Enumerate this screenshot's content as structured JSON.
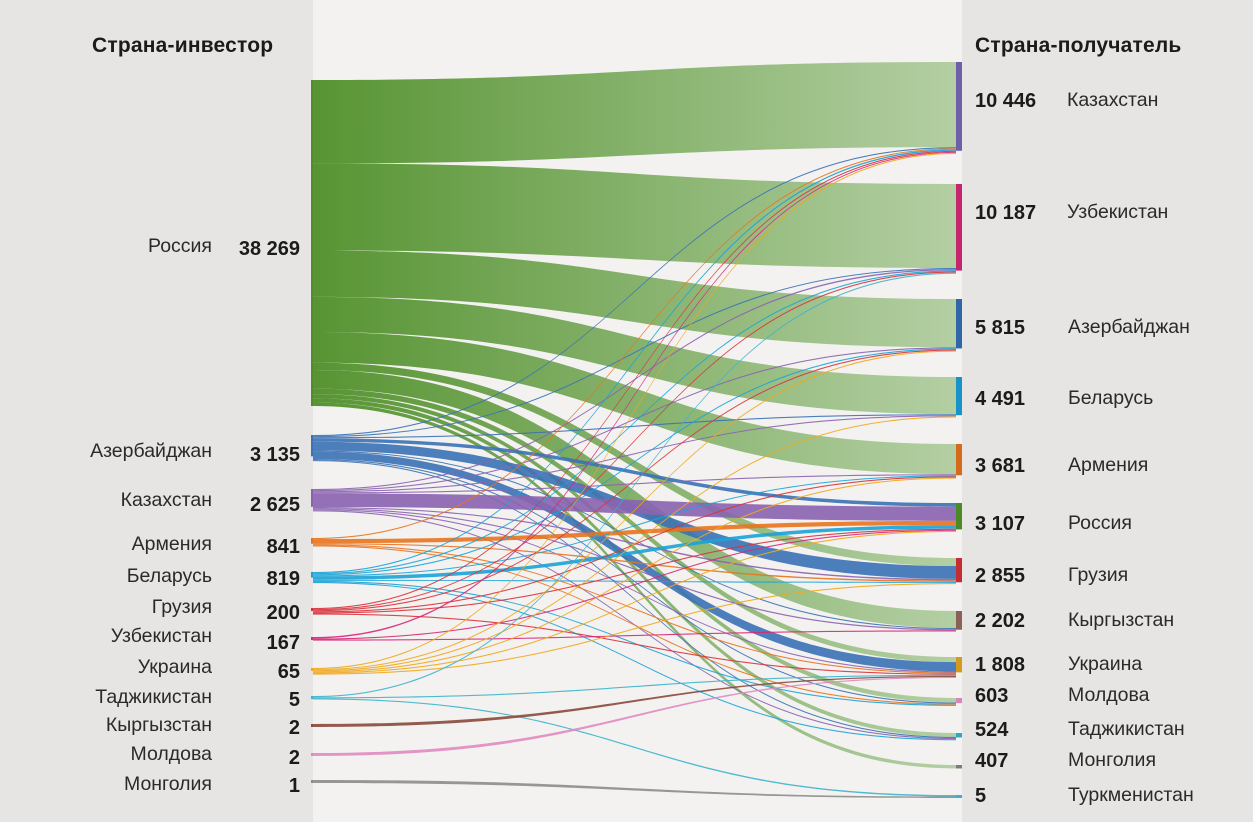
{
  "header": {
    "left_title": "Страна-инвестор",
    "right_title": "Страна-получатель"
  },
  "chart_data": {
    "type": "sankey",
    "title": "",
    "sources": [
      {
        "id": "russia",
        "label": "Россия",
        "value": 38269,
        "value_label": "38 269",
        "color": "#4f8f29"
      },
      {
        "id": "azerbaijan",
        "label": "Азербайджан",
        "value": 3135,
        "value_label": "3 135",
        "color": "#3a72b5"
      },
      {
        "id": "kazakhstan",
        "label": "Казахстан",
        "value": 2625,
        "value_label": "2 625",
        "color": "#8a63b0"
      },
      {
        "id": "armenia",
        "label": "Армения",
        "value": 841,
        "value_label": "841",
        "color": "#e8741e"
      },
      {
        "id": "belarus",
        "label": "Беларусь",
        "value": 819,
        "value_label": "819",
        "color": "#1aa3d8"
      },
      {
        "id": "georgia",
        "label": "Грузия",
        "value": 200,
        "value_label": "200",
        "color": "#d9323b"
      },
      {
        "id": "uzbekistan",
        "label": "Узбекистан",
        "value": 167,
        "value_label": "167",
        "color": "#d6287a"
      },
      {
        "id": "ukraine",
        "label": "Украина",
        "value": 65,
        "value_label": "65",
        "color": "#f0a81c"
      },
      {
        "id": "tajikistan",
        "label": "Таджикистан",
        "value": 5,
        "value_label": "5",
        "color": "#3bb4cc"
      },
      {
        "id": "kyrgyzstan",
        "label": "Кыргызстан",
        "value": 2,
        "value_label": "2",
        "color": "#8a4a3c"
      },
      {
        "id": "moldova",
        "label": "Молдова",
        "value": 2,
        "value_label": "2",
        "color": "#e08ac0"
      },
      {
        "id": "mongolia",
        "label": "Монголия",
        "value": 1,
        "value_label": "1",
        "color": "#8c8c8c"
      }
    ],
    "targets": [
      {
        "id": "kazakhstan",
        "label": "Казахстан",
        "value": 10446,
        "value_label": "10 446",
        "color": "#6d5fa8"
      },
      {
        "id": "uzbekistan",
        "label": "Узбекистан",
        "value": 10187,
        "value_label": "10 187",
        "color": "#c7246f"
      },
      {
        "id": "azerbaijan",
        "label": "Азербайджан",
        "value": 5815,
        "value_label": "5 815",
        "color": "#2f66a8"
      },
      {
        "id": "belarus",
        "label": "Беларусь",
        "value": 4491,
        "value_label": "4 491",
        "color": "#1893c8"
      },
      {
        "id": "armenia",
        "label": "Армения",
        "value": 3681,
        "value_label": "3 681",
        "color": "#d56b1a"
      },
      {
        "id": "russia",
        "label": "Россия",
        "value": 3107,
        "value_label": "3 107",
        "color": "#4c8a27"
      },
      {
        "id": "georgia",
        "label": "Грузия",
        "value": 2855,
        "value_label": "2 855",
        "color": "#c32d34"
      },
      {
        "id": "kyrgyzstan",
        "label": "Кыргызстан",
        "value": 2202,
        "value_label": "2 202",
        "color": "#8a6157"
      },
      {
        "id": "ukraine",
        "label": "Украина",
        "value": 1808,
        "value_label": "1 808",
        "color": "#d49a1c"
      },
      {
        "id": "moldova",
        "label": "Молдова",
        "value": 603,
        "value_label": "603",
        "color": "#d488b8"
      },
      {
        "id": "tajikistan",
        "label": "Таджикистан",
        "value": 524,
        "value_label": "524",
        "color": "#2aaac0"
      },
      {
        "id": "mongolia",
        "label": "Монголия",
        "value": 407,
        "value_label": "407",
        "color": "#7c7c7c"
      },
      {
        "id": "turkmenistan",
        "label": "Туркменистан",
        "value": 5,
        "value_label": "5",
        "color": "#3ab0d0"
      }
    ],
    "flows": [
      {
        "source": "russia",
        "target": "kazakhstan",
        "value": 9000
      },
      {
        "source": "russia",
        "target": "uzbekistan",
        "value": 9400
      },
      {
        "source": "russia",
        "target": "azerbaijan",
        "value": 5000
      },
      {
        "source": "russia",
        "target": "belarus",
        "value": 3800
      },
      {
        "source": "russia",
        "target": "armenia",
        "value": 3300
      },
      {
        "source": "russia",
        "target": "georgia",
        "value": 800
      },
      {
        "source": "russia",
        "target": "kyrgyzstan",
        "value": 2000
      },
      {
        "source": "russia",
        "target": "ukraine",
        "value": 600
      },
      {
        "source": "russia",
        "target": "moldova",
        "value": 450
      },
      {
        "source": "russia",
        "target": "tajikistan",
        "value": 450
      },
      {
        "source": "russia",
        "target": "mongolia",
        "value": 380
      },
      {
        "source": "azerbaijan",
        "target": "kazakhstan",
        "value": 80
      },
      {
        "source": "azerbaijan",
        "target": "uzbekistan",
        "value": 60
      },
      {
        "source": "azerbaijan",
        "target": "belarus",
        "value": 60
      },
      {
        "source": "azerbaijan",
        "target": "russia",
        "value": 500
      },
      {
        "source": "azerbaijan",
        "target": "georgia",
        "value": 1300
      },
      {
        "source": "azerbaijan",
        "target": "kyrgyzstan",
        "value": 20
      },
      {
        "source": "azerbaijan",
        "target": "ukraine",
        "value": 1080
      },
      {
        "source": "azerbaijan",
        "target": "moldova",
        "value": 20
      },
      {
        "source": "azerbaijan",
        "target": "tajikistan",
        "value": 15
      },
      {
        "source": "kazakhstan",
        "target": "uzbekistan",
        "value": 150
      },
      {
        "source": "kazakhstan",
        "target": "azerbaijan",
        "value": 50
      },
      {
        "source": "kazakhstan",
        "target": "belarus",
        "value": 30
      },
      {
        "source": "kazakhstan",
        "target": "armenia",
        "value": 20
      },
      {
        "source": "kazakhstan",
        "target": "russia",
        "value": 2000
      },
      {
        "source": "kazakhstan",
        "target": "georgia",
        "value": 150
      },
      {
        "source": "kazakhstan",
        "target": "kyrgyzstan",
        "value": 150
      },
      {
        "source": "kazakhstan",
        "target": "ukraine",
        "value": 40
      },
      {
        "source": "kazakhstan",
        "target": "tajikistan",
        "value": 35
      },
      {
        "source": "armenia",
        "target": "kazakhstan",
        "value": 30
      },
      {
        "source": "armenia",
        "target": "russia",
        "value": 600
      },
      {
        "source": "armenia",
        "target": "georgia",
        "value": 150
      },
      {
        "source": "armenia",
        "target": "ukraine",
        "value": 40
      },
      {
        "source": "armenia",
        "target": "moldova",
        "value": 21
      },
      {
        "source": "belarus",
        "target": "kazakhstan",
        "value": 150
      },
      {
        "source": "belarus",
        "target": "uzbekistan",
        "value": 60
      },
      {
        "source": "belarus",
        "target": "azerbaijan",
        "value": 20
      },
      {
        "source": "belarus",
        "target": "armenia",
        "value": 30
      },
      {
        "source": "belarus",
        "target": "russia",
        "value": 500
      },
      {
        "source": "belarus",
        "target": "georgia",
        "value": 30
      },
      {
        "source": "belarus",
        "target": "moldova",
        "value": 19
      },
      {
        "source": "belarus",
        "target": "tajikistan",
        "value": 10
      },
      {
        "source": "georgia",
        "target": "kazakhstan",
        "value": 40
      },
      {
        "source": "georgia",
        "target": "uzbekistan",
        "value": 20
      },
      {
        "source": "georgia",
        "target": "azerbaijan",
        "value": 40
      },
      {
        "source": "georgia",
        "target": "armenia",
        "value": 60
      },
      {
        "source": "georgia",
        "target": "russia",
        "value": 20
      },
      {
        "source": "georgia",
        "target": "ukraine",
        "value": 20
      },
      {
        "source": "uzbekistan",
        "target": "kazakhstan",
        "value": 80
      },
      {
        "source": "uzbekistan",
        "target": "russia",
        "value": 60
      },
      {
        "source": "uzbekistan",
        "target": "kyrgyzstan",
        "value": 27
      },
      {
        "source": "ukraine",
        "target": "kazakhstan",
        "value": 10
      },
      {
        "source": "ukraine",
        "target": "azerbaijan",
        "value": 10
      },
      {
        "source": "ukraine",
        "target": "belarus",
        "value": 10
      },
      {
        "source": "ukraine",
        "target": "armenia",
        "value": 10
      },
      {
        "source": "ukraine",
        "target": "russia",
        "value": 15
      },
      {
        "source": "ukraine",
        "target": "georgia",
        "value": 10
      },
      {
        "source": "tajikistan",
        "target": "uzbekistan",
        "value": 2
      },
      {
        "source": "tajikistan",
        "target": "ukraine",
        "value": 2
      },
      {
        "source": "tajikistan",
        "target": "turkmenistan",
        "value": 1
      },
      {
        "source": "kyrgyzstan",
        "target": "ukraine",
        "value": 2
      },
      {
        "source": "moldova",
        "target": "ukraine",
        "value": 2
      },
      {
        "source": "mongolia",
        "target": "turkmenistan",
        "value": 1
      }
    ]
  }
}
